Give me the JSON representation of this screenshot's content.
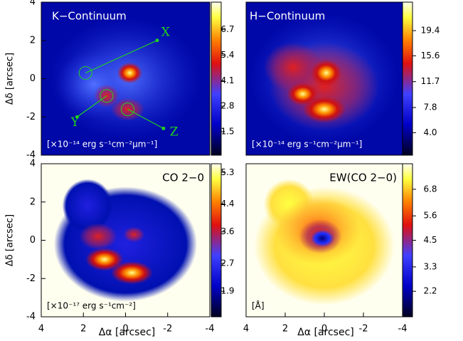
{
  "chart_data": [
    {
      "type": "image",
      "title": "K−Continuum",
      "annotation": "[×10⁻¹⁴ erg s⁻¹cm⁻²μm⁻¹]",
      "arrow_labels": [
        "X",
        "Y",
        "Z"
      ],
      "ylabel": "Δδ [arcsec]",
      "xlim": [
        4,
        -4
      ],
      "ylim": [
        -4,
        4
      ],
      "yticks": [
        -4,
        -2,
        0,
        2,
        4
      ],
      "clim": [
        0.3,
        8.1
      ],
      "cticks": [
        1.5,
        2.8,
        4.1,
        5.4,
        6.7
      ]
    },
    {
      "type": "image",
      "title": "H−Continuum",
      "annotation": "[×10⁻¹⁴ erg s⁻¹cm⁻²μm⁻¹]",
      "xlim": [
        4,
        -4
      ],
      "ylim": [
        -4,
        4
      ],
      "clim": [
        0.6,
        23.7
      ],
      "cticks": [
        {
          "value": 4,
          "label": "4.0"
        },
        7.8,
        11.7,
        15.6,
        19.4
      ]
    },
    {
      "type": "image",
      "title": "CO 2−0",
      "annotation": "[×10⁻¹⁷ erg s⁻¹cm⁻²]",
      "xlabel": "Δα [arcsec]",
      "ylabel": "Δδ [arcsec]",
      "xlim": [
        4,
        -4
      ],
      "ylim": [
        -4,
        4
      ],
      "xticks": [
        4,
        2,
        0,
        -2,
        -4
      ],
      "yticks": [
        -4,
        -2,
        0,
        2,
        4
      ],
      "clim": [
        1.17,
        5.55
      ],
      "cticks": [
        1.9,
        2.7,
        3.6,
        4.4,
        5.3
      ]
    },
    {
      "type": "image",
      "title": "EW(CO 2−0)",
      "annotation": "[Å]",
      "xlabel": "Δα [arcsec]",
      "xlim": [
        4,
        -4
      ],
      "ylim": [
        -4,
        4
      ],
      "xticks": [
        4,
        2,
        0,
        -2,
        -4
      ],
      "clim": [
        1.05,
        7.95
      ],
      "cticks": [
        2.2,
        3.3,
        4.5,
        5.6,
        6.8
      ]
    }
  ]
}
